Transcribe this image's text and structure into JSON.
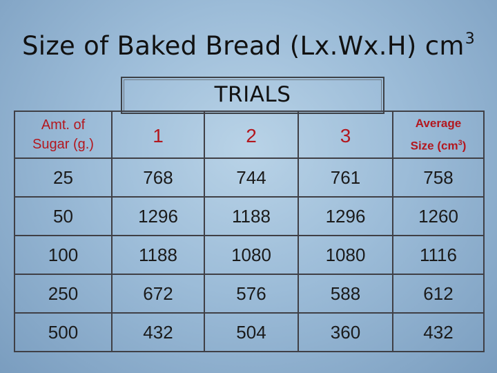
{
  "slide": {
    "title": "Size of Baked Bread (Lx.Wx.H) cm",
    "title_sup": "3",
    "trials_label": "TRIALS"
  },
  "table": {
    "header": {
      "sugar_line1": "Amt. of",
      "sugar_line2": "Sugar (g.)",
      "trial1": "1",
      "trial2": "2",
      "trial3": "3",
      "avg_line1": "Average",
      "avg_line2": "Size (cm",
      "avg_sup": "3",
      "avg_close": ")"
    },
    "rows": [
      {
        "sugar": "25",
        "t1": "768",
        "t2": "744",
        "t3": "761",
        "avg": "758"
      },
      {
        "sugar": "50",
        "t1": "1296",
        "t2": "1188",
        "t3": "1296",
        "avg": "1260"
      },
      {
        "sugar": "100",
        "t1": "1188",
        "t2": "1080",
        "t3": "1080",
        "avg": "1116"
      },
      {
        "sugar": "250",
        "t1": "672",
        "t2": "576",
        "t3": "588",
        "avg": "612"
      },
      {
        "sugar": "500",
        "t1": "432",
        "t2": "504",
        "t3": "360",
        "avg": "432"
      }
    ]
  },
  "colors": {
    "accent_red": "#b3171e",
    "grid_line": "#3f3f45",
    "background": "#9cbcd8"
  }
}
